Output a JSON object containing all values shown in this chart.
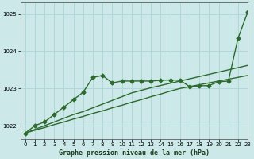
{
  "title": "Graphe pression niveau de la mer (hPa)",
  "bg_color": "#cce8e8",
  "grid_color": "#b0d8d8",
  "line_color": "#2d6a2d",
  "xlim": [
    -0.5,
    23
  ],
  "ylim": [
    1021.65,
    1025.3
  ],
  "yticks": [
    1022,
    1023,
    1024,
    1025
  ],
  "xticks": [
    0,
    1,
    2,
    3,
    4,
    5,
    6,
    7,
    8,
    9,
    10,
    11,
    12,
    13,
    14,
    15,
    16,
    17,
    18,
    19,
    20,
    21,
    22,
    23
  ],
  "series": [
    {
      "x": [
        0,
        1,
        2,
        3,
        4,
        5,
        6,
        7,
        8,
        9,
        10,
        11,
        12,
        13,
        14,
        15,
        16,
        17,
        18,
        19,
        20,
        21,
        22,
        23
      ],
      "y": [
        1021.8,
        1021.88,
        1021.95,
        1022.03,
        1022.1,
        1022.18,
        1022.25,
        1022.33,
        1022.4,
        1022.48,
        1022.55,
        1022.63,
        1022.7,
        1022.78,
        1022.85,
        1022.93,
        1023.0,
        1023.05,
        1023.1,
        1023.15,
        1023.2,
        1023.25,
        1023.3,
        1023.35
      ],
      "marker": null,
      "lw": 1.0
    },
    {
      "x": [
        0,
        1,
        2,
        3,
        4,
        5,
        6,
        7,
        8,
        9,
        10,
        11,
        12,
        13,
        14,
        15,
        16,
        17,
        18,
        19,
        20,
        21,
        22,
        23
      ],
      "y": [
        1021.8,
        1021.9,
        1022.0,
        1022.1,
        1022.2,
        1022.3,
        1022.38,
        1022.48,
        1022.58,
        1022.68,
        1022.78,
        1022.88,
        1022.95,
        1023.02,
        1023.08,
        1023.14,
        1023.2,
        1023.26,
        1023.32,
        1023.38,
        1023.44,
        1023.5,
        1023.56,
        1023.62
      ],
      "marker": null,
      "lw": 1.0
    },
    {
      "x": [
        0,
        1,
        2,
        3,
        4,
        5,
        6,
        7,
        8,
        9,
        10,
        11,
        12,
        13,
        14,
        15,
        16,
        17,
        18,
        19,
        20,
        21,
        22,
        23
      ],
      "y": [
        1021.8,
        1022.0,
        1022.1,
        1022.3,
        1022.5,
        1022.7,
        1022.9,
        1023.3,
        1023.35,
        1023.15,
        1023.2,
        1023.2,
        1023.2,
        1023.2,
        1023.22,
        1023.23,
        1023.22,
        1023.05,
        1023.07,
        1023.08,
        1023.18,
        1023.2,
        1024.35,
        1025.05
      ],
      "marker": "D",
      "ms": 2.5,
      "lw": 1.0
    }
  ]
}
